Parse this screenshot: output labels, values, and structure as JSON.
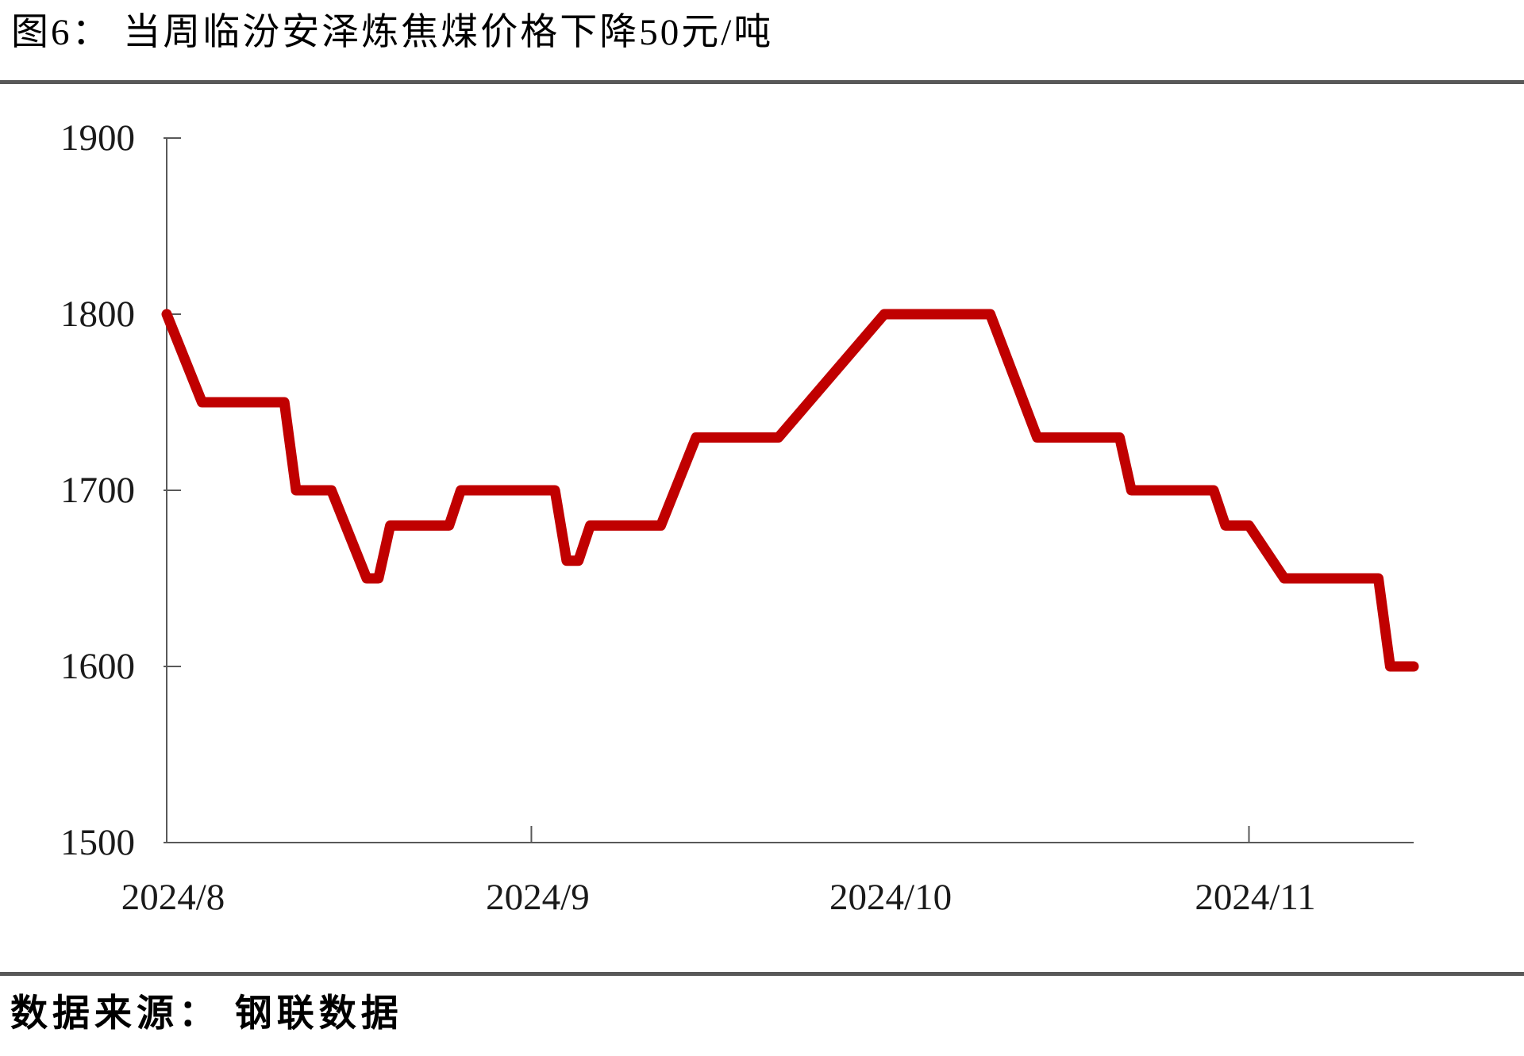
{
  "page": {
    "title": "图6： 当周临汾安泽炼焦煤价格下降50元/吨",
    "source": "数据来源： 钢联数据"
  },
  "colors": {
    "line": "#c00000",
    "rule": "#595959",
    "axis": "#595959",
    "text": "#1a1a1a"
  },
  "chart_data": {
    "type": "line",
    "title": "当周临汾安泽炼焦煤价格下降50元/吨",
    "unit": "元/吨",
    "grid": false,
    "legend": "none",
    "ylim": [
      1500,
      1900
    ],
    "y_ticks": [
      1900,
      1800,
      1700,
      1600,
      1500
    ],
    "x_range": [
      "2024-08-01",
      "2024-11-15"
    ],
    "x_ticks": [
      {
        "label": "2024/8",
        "date": "2024-08-01",
        "tick_mark": false
      },
      {
        "label": "2024/9",
        "date": "2024-09-01",
        "tick_mark": true
      },
      {
        "label": "2024/10",
        "date": "2024-10-01",
        "tick_mark": false
      },
      {
        "label": "2024/11",
        "date": "2024-11-01",
        "tick_mark": true
      }
    ],
    "series": [
      {
        "name": "临汾安泽炼焦煤价格",
        "color": "#c00000",
        "points": [
          [
            "2024-08-01",
            1800
          ],
          [
            "2024-08-04",
            1750
          ],
          [
            "2024-08-11",
            1750
          ],
          [
            "2024-08-12",
            1700
          ],
          [
            "2024-08-15",
            1700
          ],
          [
            "2024-08-18",
            1650
          ],
          [
            "2024-08-19",
            1650
          ],
          [
            "2024-08-20",
            1680
          ],
          [
            "2024-08-25",
            1680
          ],
          [
            "2024-08-26",
            1700
          ],
          [
            "2024-09-03",
            1700
          ],
          [
            "2024-09-04",
            1660
          ],
          [
            "2024-09-05",
            1660
          ],
          [
            "2024-09-06",
            1680
          ],
          [
            "2024-09-12",
            1680
          ],
          [
            "2024-09-15",
            1730
          ],
          [
            "2024-09-22",
            1730
          ],
          [
            "2024-10-01",
            1800
          ],
          [
            "2024-10-10",
            1800
          ],
          [
            "2024-10-14",
            1730
          ],
          [
            "2024-10-21",
            1730
          ],
          [
            "2024-10-22",
            1700
          ],
          [
            "2024-10-29",
            1700
          ],
          [
            "2024-10-30",
            1680
          ],
          [
            "2024-11-01",
            1680
          ],
          [
            "2024-11-04",
            1650
          ],
          [
            "2024-11-12",
            1650
          ],
          [
            "2024-11-13",
            1600
          ],
          [
            "2024-11-15",
            1600
          ]
        ]
      }
    ]
  }
}
